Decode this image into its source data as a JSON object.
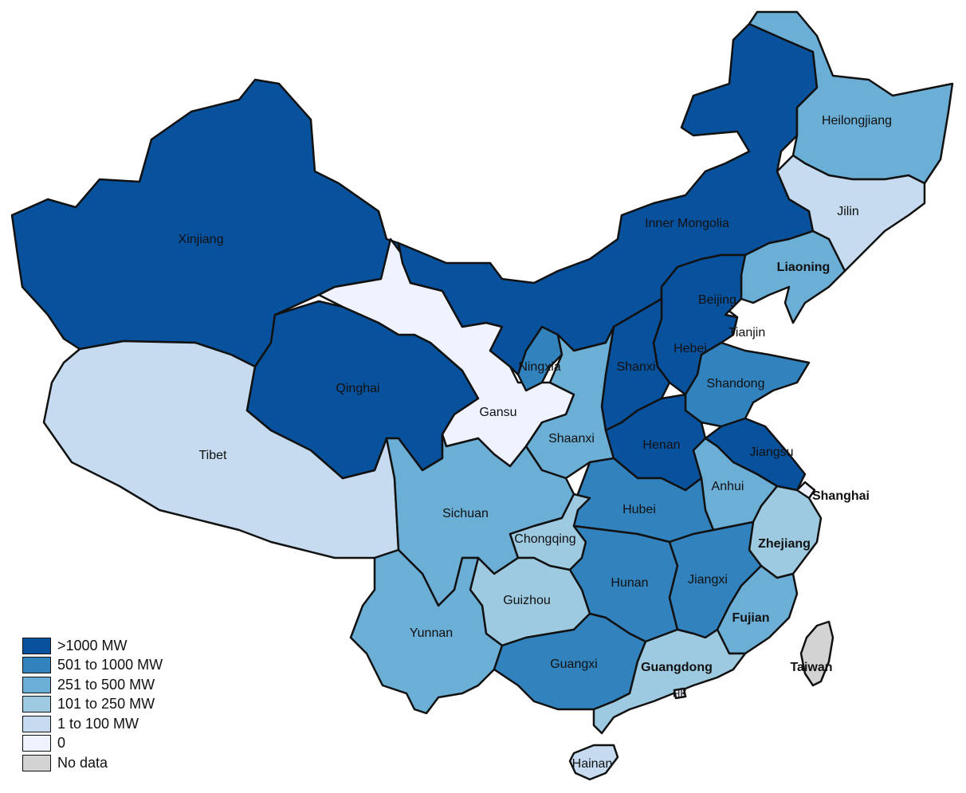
{
  "legend": [
    {
      "label": ">1000 MW",
      "color": "#08519c"
    },
    {
      "label": "501 to 1000 MW",
      "color": "#3182bd"
    },
    {
      "label": "251 to 500 MW",
      "color": "#6baed6"
    },
    {
      "label": "101 to 250 MW",
      "color": "#9ecae1"
    },
    {
      "label": "1 to 100 MW",
      "color": "#c6dbef"
    },
    {
      "label": "0",
      "color": "#eff3ff"
    },
    {
      "label": "No data",
      "color": "#d3d3d3"
    }
  ],
  "provinces": [
    {
      "name": "Xinjiang",
      "class": ">1000 MW"
    },
    {
      "name": "Tibet",
      "class": "1 to 100 MW"
    },
    {
      "name": "Qinghai",
      "class": ">1000 MW"
    },
    {
      "name": "Gansu",
      "class": "0"
    },
    {
      "name": "Inner Mongolia",
      "class": ">1000 MW"
    },
    {
      "name": "Heilongjiang",
      "class": "251 to 500 MW"
    },
    {
      "name": "Jilin",
      "class": "1 to 100 MW"
    },
    {
      "name": "Liaoning",
      "class": "251 to 500 MW"
    },
    {
      "name": "Beijing",
      "class": "1 to 100 MW"
    },
    {
      "name": "Tianjin",
      "class": "0"
    },
    {
      "name": "Hebei",
      "class": ">1000 MW"
    },
    {
      "name": "Shanxi",
      "class": ">1000 MW"
    },
    {
      "name": "Ningxia",
      "class": "501 to 1000 MW"
    },
    {
      "name": "Shaanxi",
      "class": "251 to 500 MW"
    },
    {
      "name": "Shandong",
      "class": "501 to 1000 MW"
    },
    {
      "name": "Henan",
      "class": ">1000 MW"
    },
    {
      "name": "Jiangsu",
      "class": ">1000 MW"
    },
    {
      "name": "Shanghai",
      "class": "0"
    },
    {
      "name": "Anhui",
      "class": "251 to 500 MW"
    },
    {
      "name": "Hubei",
      "class": "501 to 1000 MW"
    },
    {
      "name": "Sichuan",
      "class": "251 to 500 MW"
    },
    {
      "name": "Chongqing",
      "class": "101 to 250 MW"
    },
    {
      "name": "Zhejiang",
      "class": "101 to 250 MW"
    },
    {
      "name": "Hunan",
      "class": "501 to 1000 MW"
    },
    {
      "name": "Jiangxi",
      "class": "501 to 1000 MW"
    },
    {
      "name": "Guizhou",
      "class": "101 to 250 MW"
    },
    {
      "name": "Fujian",
      "class": "251 to 500 MW"
    },
    {
      "name": "Yunnan",
      "class": "251 to 500 MW"
    },
    {
      "name": "Guangxi",
      "class": "501 to 1000 MW"
    },
    {
      "name": "Guangdong",
      "class": "101 to 250 MW"
    },
    {
      "name": "HK",
      "class": "0"
    },
    {
      "name": "Hainan",
      "class": "1 to 100 MW"
    },
    {
      "name": "Taiwan",
      "class": "No data"
    }
  ]
}
